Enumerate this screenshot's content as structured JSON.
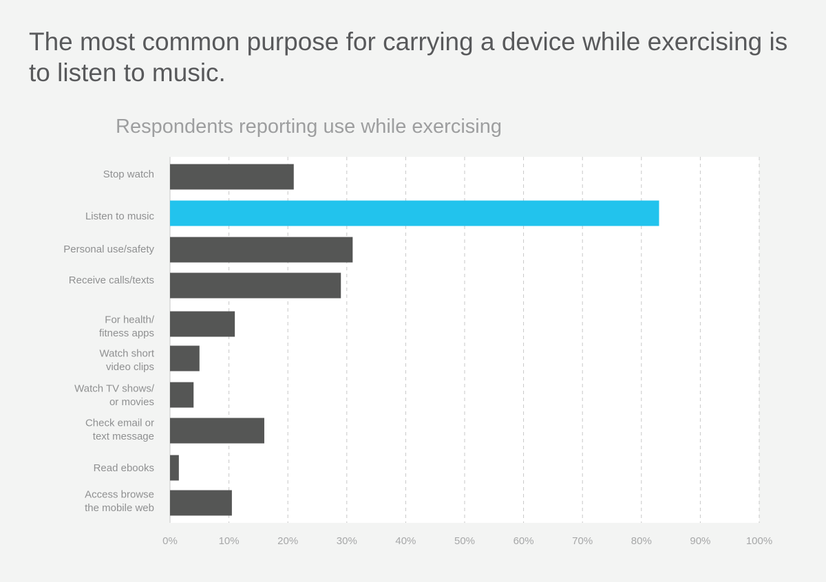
{
  "headline": "The most common purpose for carrying a device while exercising is to listen to music.",
  "chart_data": {
    "type": "bar",
    "orientation": "horizontal",
    "title": "Respondents reporting use while exercising",
    "categories": [
      "Stop watch",
      "Listen to music",
      "Personal use/safety",
      "Receive calls/texts",
      "For health/\nfitness apps",
      "Watch short\nvideo clips",
      "Watch TV shows/\nor movies",
      "Check email or\ntext message",
      "Read ebooks",
      "Access browse\nthe mobile web"
    ],
    "values": [
      21,
      83,
      31,
      29,
      11,
      5,
      4,
      16,
      1.5,
      10.5
    ],
    "highlight_index": 1,
    "xlim": [
      0,
      100
    ],
    "xticks": [
      0,
      10,
      20,
      30,
      40,
      50,
      60,
      70,
      80,
      90,
      100
    ],
    "xtick_labels": [
      "0%",
      "10%",
      "20%",
      "30%",
      "40%",
      "50%",
      "60%",
      "70%",
      "80%",
      "90%",
      "100%"
    ],
    "grid": true,
    "colors": {
      "bar": "#555655",
      "highlight": "#22c3ed",
      "grid": "#c7c7c7",
      "plot_bg": "#ffffff",
      "label": "#8f9091"
    }
  }
}
